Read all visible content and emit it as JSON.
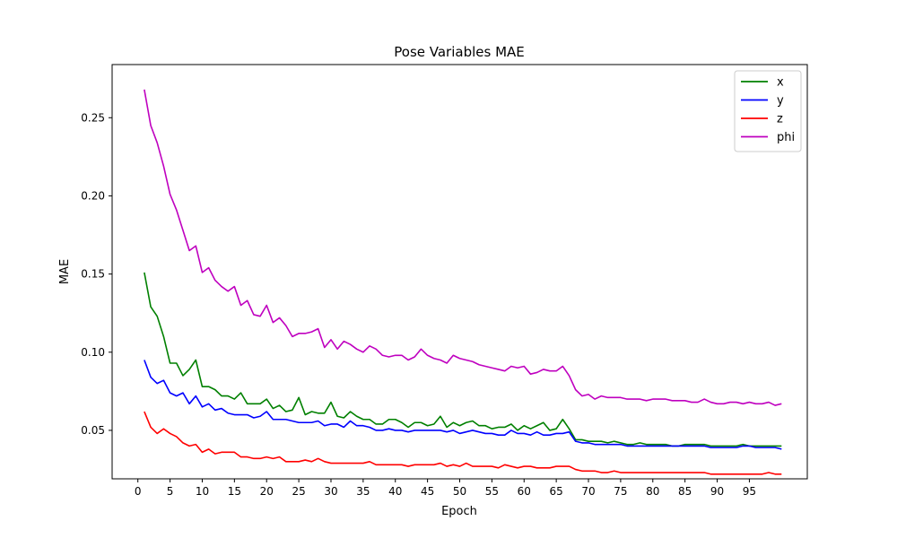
{
  "chart_data": {
    "type": "line",
    "title": "Pose Variables MAE",
    "xlabel": "Epoch",
    "ylabel": "MAE",
    "xlim": [
      -4,
      104
    ],
    "ylim": [
      0.019,
      0.284
    ],
    "xticks": [
      0,
      5,
      10,
      15,
      20,
      25,
      30,
      35,
      40,
      45,
      50,
      55,
      60,
      65,
      70,
      75,
      80,
      85,
      90,
      95
    ],
    "yticks": [
      0.05,
      0.1,
      0.15,
      0.2,
      0.25
    ],
    "ytick_labels": [
      "0.05",
      "0.10",
      "0.15",
      "0.20",
      "0.25"
    ],
    "grid": false,
    "legend_position": "top-right",
    "x": [
      1,
      2,
      3,
      4,
      5,
      6,
      7,
      8,
      9,
      10,
      11,
      12,
      13,
      14,
      15,
      16,
      17,
      18,
      19,
      20,
      21,
      22,
      23,
      24,
      25,
      26,
      27,
      28,
      29,
      30,
      31,
      32,
      33,
      34,
      35,
      36,
      37,
      38,
      39,
      40,
      41,
      42,
      43,
      44,
      45,
      46,
      47,
      48,
      49,
      50,
      51,
      52,
      53,
      54,
      55,
      56,
      57,
      58,
      59,
      60,
      61,
      62,
      63,
      64,
      65,
      66,
      67,
      68,
      69,
      70,
      71,
      72,
      73,
      74,
      75,
      76,
      77,
      78,
      79,
      80,
      81,
      82,
      83,
      84,
      85,
      86,
      87,
      88,
      89,
      90,
      91,
      92,
      93,
      94,
      95,
      96,
      97,
      98,
      99,
      100
    ],
    "series": [
      {
        "name": "x",
        "color": "#008000",
        "values": [
          0.151,
          0.129,
          0.123,
          0.11,
          0.093,
          0.093,
          0.085,
          0.089,
          0.095,
          0.078,
          0.078,
          0.076,
          0.072,
          0.072,
          0.07,
          0.074,
          0.067,
          0.067,
          0.067,
          0.07,
          0.064,
          0.066,
          0.062,
          0.063,
          0.071,
          0.06,
          0.062,
          0.061,
          0.061,
          0.068,
          0.059,
          0.058,
          0.062,
          0.059,
          0.057,
          0.057,
          0.054,
          0.054,
          0.057,
          0.057,
          0.055,
          0.052,
          0.055,
          0.055,
          0.053,
          0.054,
          0.059,
          0.052,
          0.055,
          0.053,
          0.055,
          0.056,
          0.053,
          0.053,
          0.051,
          0.052,
          0.052,
          0.054,
          0.05,
          0.053,
          0.051,
          0.053,
          0.055,
          0.05,
          0.051,
          0.057,
          0.051,
          0.044,
          0.044,
          0.043,
          0.043,
          0.043,
          0.042,
          0.043,
          0.042,
          0.041,
          0.041,
          0.042,
          0.041,
          0.041,
          0.041,
          0.041,
          0.04,
          0.04,
          0.041,
          0.041,
          0.041,
          0.041,
          0.04,
          0.04,
          0.04,
          0.04,
          0.04,
          0.041,
          0.04,
          0.04,
          0.04,
          0.04,
          0.04,
          0.04
        ]
      },
      {
        "name": "y",
        "color": "#0000ff",
        "values": [
          0.095,
          0.084,
          0.08,
          0.082,
          0.074,
          0.072,
          0.074,
          0.067,
          0.072,
          0.065,
          0.067,
          0.063,
          0.064,
          0.061,
          0.06,
          0.06,
          0.06,
          0.058,
          0.059,
          0.062,
          0.057,
          0.057,
          0.057,
          0.056,
          0.055,
          0.055,
          0.055,
          0.056,
          0.053,
          0.054,
          0.054,
          0.052,
          0.056,
          0.053,
          0.053,
          0.052,
          0.05,
          0.05,
          0.051,
          0.05,
          0.05,
          0.049,
          0.05,
          0.05,
          0.05,
          0.05,
          0.05,
          0.049,
          0.05,
          0.048,
          0.049,
          0.05,
          0.049,
          0.048,
          0.048,
          0.047,
          0.047,
          0.05,
          0.048,
          0.048,
          0.047,
          0.049,
          0.047,
          0.047,
          0.048,
          0.048,
          0.049,
          0.043,
          0.042,
          0.042,
          0.041,
          0.041,
          0.041,
          0.041,
          0.041,
          0.04,
          0.04,
          0.04,
          0.04,
          0.04,
          0.04,
          0.04,
          0.04,
          0.04,
          0.04,
          0.04,
          0.04,
          0.04,
          0.039,
          0.039,
          0.039,
          0.039,
          0.039,
          0.04,
          0.04,
          0.039,
          0.039,
          0.039,
          0.039,
          0.038
        ]
      },
      {
        "name": "z",
        "color": "#ff0000",
        "values": [
          0.062,
          0.052,
          0.048,
          0.051,
          0.048,
          0.046,
          0.042,
          0.04,
          0.041,
          0.036,
          0.038,
          0.035,
          0.036,
          0.036,
          0.036,
          0.033,
          0.033,
          0.032,
          0.032,
          0.033,
          0.032,
          0.033,
          0.03,
          0.03,
          0.03,
          0.031,
          0.03,
          0.032,
          0.03,
          0.029,
          0.029,
          0.029,
          0.029,
          0.029,
          0.029,
          0.03,
          0.028,
          0.028,
          0.028,
          0.028,
          0.028,
          0.027,
          0.028,
          0.028,
          0.028,
          0.028,
          0.029,
          0.027,
          0.028,
          0.027,
          0.029,
          0.027,
          0.027,
          0.027,
          0.027,
          0.026,
          0.028,
          0.027,
          0.026,
          0.027,
          0.027,
          0.026,
          0.026,
          0.026,
          0.027,
          0.027,
          0.027,
          0.025,
          0.024,
          0.024,
          0.024,
          0.023,
          0.023,
          0.024,
          0.023,
          0.023,
          0.023,
          0.023,
          0.023,
          0.023,
          0.023,
          0.023,
          0.023,
          0.023,
          0.023,
          0.023,
          0.023,
          0.023,
          0.022,
          0.022,
          0.022,
          0.022,
          0.022,
          0.022,
          0.022,
          0.022,
          0.022,
          0.023,
          0.022,
          0.022
        ]
      },
      {
        "name": "phi",
        "color": "#bf00bf",
        "values": [
          0.268,
          0.245,
          0.234,
          0.219,
          0.201,
          0.191,
          0.178,
          0.165,
          0.168,
          0.151,
          0.154,
          0.146,
          0.142,
          0.139,
          0.142,
          0.13,
          0.133,
          0.124,
          0.123,
          0.13,
          0.119,
          0.122,
          0.117,
          0.11,
          0.112,
          0.112,
          0.113,
          0.115,
          0.103,
          0.108,
          0.102,
          0.107,
          0.105,
          0.102,
          0.1,
          0.104,
          0.102,
          0.098,
          0.097,
          0.098,
          0.098,
          0.095,
          0.097,
          0.102,
          0.098,
          0.096,
          0.095,
          0.093,
          0.098,
          0.096,
          0.095,
          0.094,
          0.092,
          0.091,
          0.09,
          0.089,
          0.088,
          0.091,
          0.09,
          0.091,
          0.086,
          0.087,
          0.089,
          0.088,
          0.088,
          0.091,
          0.085,
          0.076,
          0.072,
          0.073,
          0.07,
          0.072,
          0.071,
          0.071,
          0.071,
          0.07,
          0.07,
          0.07,
          0.069,
          0.07,
          0.07,
          0.07,
          0.069,
          0.069,
          0.069,
          0.068,
          0.068,
          0.07,
          0.068,
          0.067,
          0.067,
          0.068,
          0.068,
          0.067,
          0.068,
          0.067,
          0.067,
          0.068,
          0.066,
          0.067
        ]
      }
    ]
  }
}
